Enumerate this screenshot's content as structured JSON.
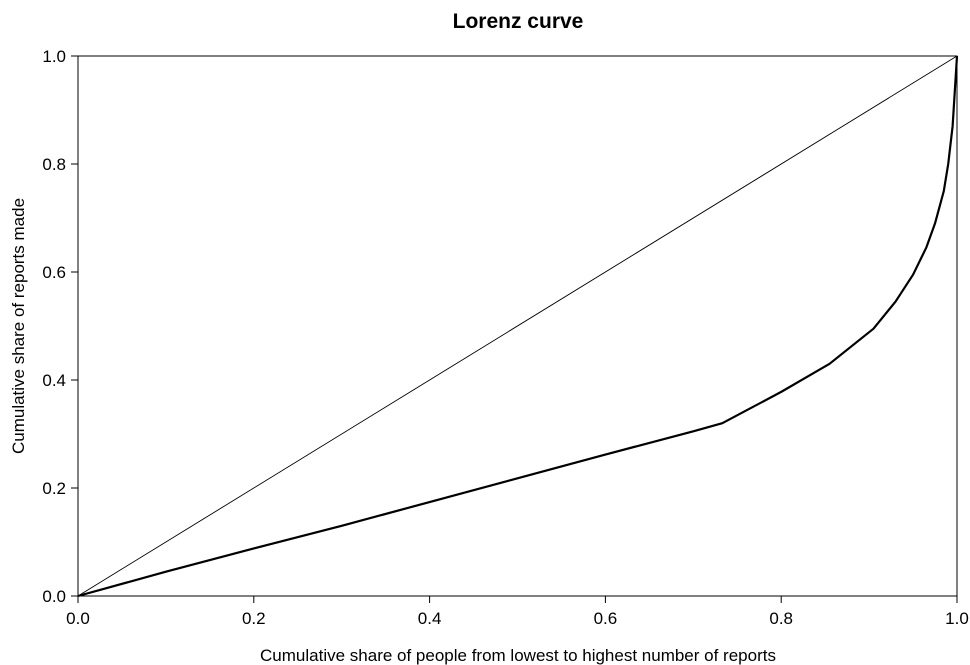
{
  "chart_data": {
    "type": "line",
    "title": "Lorenz curve",
    "xlabel": "Cumulative share of people from lowest to highest number of reports",
    "ylabel": "Cumulative share of reports made",
    "xlim": [
      0,
      1
    ],
    "ylim": [
      0,
      1
    ],
    "xticks": [
      "0.0",
      "0.2",
      "0.4",
      "0.6",
      "0.8",
      "1.0"
    ],
    "yticks": [
      "0.0",
      "0.2",
      "0.4",
      "0.6",
      "0.8",
      "1.0"
    ],
    "grid": false,
    "legend": "none",
    "series": [
      {
        "role": "equality-line",
        "x": [
          0,
          1
        ],
        "y": [
          0,
          1
        ]
      },
      {
        "role": "lorenz-curve",
        "x": [
          0,
          0.1,
          0.2,
          0.3,
          0.4,
          0.5,
          0.6,
          0.7,
          0.733,
          0.8,
          0.855,
          0.905,
          0.93,
          0.95,
          0.965,
          0.975,
          0.985,
          0.99,
          0.995,
          1.0
        ],
        "y": [
          0,
          0.045,
          0.088,
          0.13,
          0.174,
          0.218,
          0.262,
          0.305,
          0.32,
          0.378,
          0.43,
          0.495,
          0.545,
          0.595,
          0.645,
          0.69,
          0.75,
          0.8,
          0.87,
          1.0
        ]
      }
    ]
  }
}
